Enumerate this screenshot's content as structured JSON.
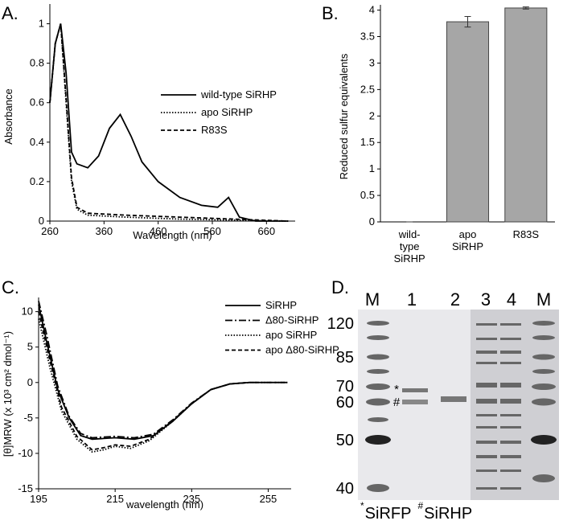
{
  "chart_data": [
    {
      "type": "line",
      "panel_label": "A.",
      "x_label": "Wavelength (nm)",
      "y_label": "Absorbance",
      "xlim": [
        260,
        713
      ],
      "xticks": [
        260,
        360,
        460,
        560,
        660
      ],
      "ylim": [
        0,
        1.1
      ],
      "yticks": [
        0,
        0.2,
        0.4,
        0.6,
        0.8,
        1
      ],
      "series": [
        {
          "name": "wild-type SiRHP",
          "color": "#000000",
          "line_style": "solid",
          "x": [
            260,
            270,
            280,
            290,
            300,
            310,
            330,
            350,
            370,
            390,
            410,
            430,
            460,
            500,
            540,
            570,
            590,
            610,
            640,
            700
          ],
          "values": [
            0.6,
            0.9,
            1.0,
            0.75,
            0.35,
            0.29,
            0.27,
            0.33,
            0.47,
            0.54,
            0.43,
            0.3,
            0.2,
            0.12,
            0.08,
            0.07,
            0.12,
            0.02,
            0,
            0
          ]
        },
        {
          "name": "apo SiRHP",
          "color": "#000000",
          "line_style": "dotted",
          "x": [
            260,
            270,
            280,
            290,
            300,
            310,
            330,
            400,
            500,
            600,
            700
          ],
          "values": [
            0.6,
            0.9,
            1.0,
            0.6,
            0.2,
            0.06,
            0.03,
            0.02,
            0.01,
            0.005,
            0
          ]
        },
        {
          "name": "R83S",
          "color": "#000000",
          "line_style": "dashed",
          "x": [
            260,
            270,
            280,
            290,
            300,
            310,
            330,
            400,
            500,
            600,
            700
          ],
          "values": [
            0.6,
            0.9,
            1.0,
            0.62,
            0.22,
            0.07,
            0.04,
            0.03,
            0.02,
            0.01,
            0
          ]
        }
      ]
    },
    {
      "type": "bar",
      "panel_label": "B.",
      "y_label": "Reduced sulfur equivalents",
      "categories": [
        "wild-type SiRHP",
        "apo SiRHP",
        "R83S"
      ],
      "values": [
        0,
        3.78,
        4.04
      ],
      "errors": [
        0,
        0.1,
        0.02
      ],
      "color": "#a6a6a6",
      "ylim": [
        0,
        4.1
      ],
      "yticks": [
        0,
        0.5,
        1,
        1.5,
        2,
        2.5,
        3,
        3.5,
        4
      ]
    },
    {
      "type": "line",
      "panel_label": "C.",
      "x_label": "wavelength (nm)",
      "y_label": "[θ]MRW (x 10³ cm² dmol⁻¹)",
      "xlim": [
        195,
        261
      ],
      "xticks": [
        195,
        215,
        235,
        255
      ],
      "ylim": [
        -15,
        12
      ],
      "yticks": [
        -15,
        -10,
        -5,
        0,
        5,
        10
      ],
      "series": [
        {
          "name": "SiRHP",
          "color": "#000000",
          "line_style": "solid",
          "x": [
            195,
            197,
            200,
            203,
            206,
            209,
            215,
            220,
            225,
            230,
            235,
            240,
            245,
            250,
            260
          ],
          "values": [
            11,
            6,
            -1,
            -5,
            -7.5,
            -8,
            -7.8,
            -8,
            -7.5,
            -5.5,
            -3,
            -1,
            -0.2,
            0,
            0
          ]
        },
        {
          "name": "Δ80-SiRHP",
          "color": "#000000",
          "line_style": "dashdot",
          "x": [
            195,
            197,
            200,
            203,
            206,
            209,
            215,
            220,
            225,
            230,
            235,
            240,
            245,
            250,
            260
          ],
          "values": [
            11.5,
            7,
            -0.5,
            -4.8,
            -7.2,
            -7.8,
            -7.6,
            -7.8,
            -7.3,
            -5.3,
            -2.9,
            -1,
            -0.2,
            0,
            0
          ]
        },
        {
          "name": "apo SiRHP",
          "color": "#000000",
          "line_style": "dotted",
          "x": [
            195,
            198,
            201,
            205,
            209,
            212,
            215,
            219,
            224,
            230,
            235,
            240,
            245,
            250,
            260
          ],
          "values": [
            9,
            2,
            -4,
            -8,
            -9.8,
            -9.5,
            -9,
            -9.3,
            -8.2,
            -5.5,
            -3,
            -1,
            -0.2,
            0,
            0
          ]
        },
        {
          "name": "apo Δ80-SiRHP",
          "color": "#000000",
          "line_style": "dashed",
          "x": [
            195,
            198,
            201,
            205,
            209,
            212,
            215,
            219,
            224,
            230,
            235,
            240,
            245,
            250,
            260
          ],
          "values": [
            10,
            3,
            -3.5,
            -7.6,
            -9.5,
            -9.2,
            -8.8,
            -9,
            -8,
            -5.4,
            -3,
            -1,
            -0.2,
            0,
            0
          ]
        }
      ]
    }
  ],
  "gel": {
    "panel_label": "D.",
    "lanes": [
      "M",
      "1",
      "2",
      "3",
      "4",
      "M"
    ],
    "markers": [
      120,
      85,
      70,
      60,
      50,
      40
    ],
    "band_marks": [
      "*",
      "#"
    ],
    "caption": [
      {
        "mark": "*",
        "text": "SiRFP"
      },
      {
        "mark": "#",
        "text": "SiRHP"
      }
    ]
  }
}
